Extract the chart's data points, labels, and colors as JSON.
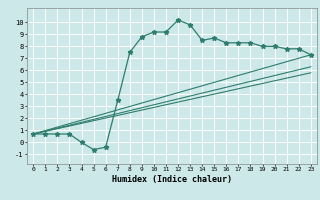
{
  "title": "",
  "xlabel": "Humidex (Indice chaleur)",
  "bg_color": "#cce8e8",
  "grid_color": "#ffffff",
  "line_color": "#2e7d6e",
  "xlim": [
    -0.5,
    23.5
  ],
  "ylim": [
    -1.8,
    11.2
  ],
  "xticks": [
    0,
    1,
    2,
    3,
    4,
    5,
    6,
    7,
    8,
    9,
    10,
    11,
    12,
    13,
    14,
    15,
    16,
    17,
    18,
    19,
    20,
    21,
    22,
    23
  ],
  "yticks": [
    -1,
    0,
    1,
    2,
    3,
    4,
    5,
    6,
    7,
    8,
    9,
    10
  ],
  "curve1_x": [
    0,
    1,
    2,
    3,
    4,
    5,
    6,
    7,
    8,
    9,
    10,
    11,
    12,
    13,
    14,
    15,
    16,
    17,
    18,
    19,
    20,
    21,
    22,
    23
  ],
  "curve1_y": [
    0.7,
    0.7,
    0.7,
    0.7,
    0.0,
    -0.6,
    -0.4,
    3.5,
    7.5,
    8.8,
    9.2,
    9.2,
    10.2,
    9.8,
    8.5,
    8.7,
    8.3,
    8.3,
    8.3,
    8.0,
    8.0,
    7.8,
    7.8,
    7.3
  ],
  "line2_x": [
    0,
    23
  ],
  "line2_y": [
    0.7,
    7.3
  ],
  "line3_x": [
    0,
    23
  ],
  "line3_y": [
    0.7,
    6.3
  ],
  "line4_x": [
    0,
    23
  ],
  "line4_y": [
    0.7,
    5.8
  ]
}
